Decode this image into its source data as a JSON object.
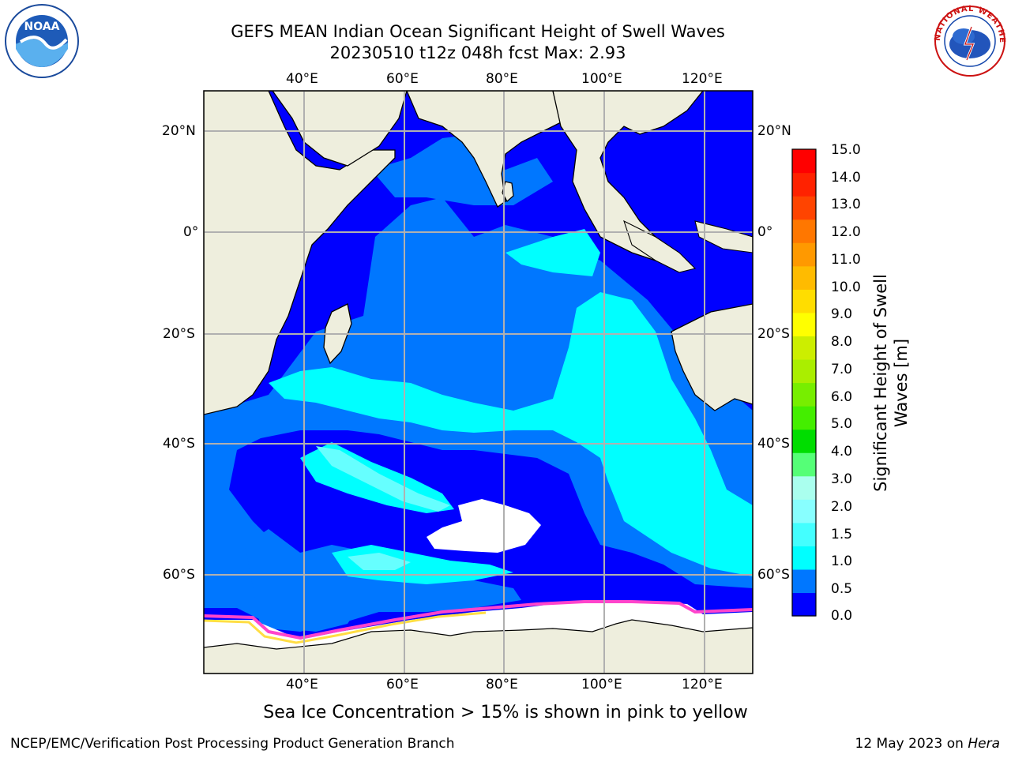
{
  "title": {
    "line1": "GEFS MEAN Indian Ocean Significant Height of Swell Waves",
    "line2": "20230510 t12z 048h fcst   Max: 2.93"
  },
  "map": {
    "lon_labels": [
      "40°E",
      "60°E",
      "80°E",
      "100°E",
      "120°E"
    ],
    "lat_labels": [
      "20°N",
      "0°",
      "20°S",
      "40°S",
      "60°S"
    ],
    "colors": {
      "land": "#eeeedd",
      "no_data": "#ffffff",
      "bin_0": "#0000ff",
      "bin_1": "#0077ff",
      "bin_2": "#00ffff",
      "bin_3": "#66ffff",
      "grid": "#b0b0b0",
      "ice_pink": "#ff44cc",
      "ice_yellow": "#ffdd44"
    }
  },
  "colorbar": {
    "title_line1": "Significant Height of Swell",
    "title_line2": "Waves [m]",
    "labels": [
      "15.0",
      "14.0",
      "13.0",
      "12.0",
      "11.0",
      "10.0",
      "9.0",
      "8.0",
      "7.0",
      "6.0",
      "5.0",
      "4.0",
      "3.0",
      "2.0",
      "1.5",
      "1.0",
      "0.5",
      "0.0"
    ],
    "colors": [
      "#0000ff",
      "#0077ff",
      "#00ffff",
      "#44ffff",
      "#88ffff",
      "#aaffee",
      "#55ff77",
      "#00dd00",
      "#44ee00",
      "#77ee00",
      "#aaee00",
      "#ccee00",
      "#ffff00",
      "#ffdd00",
      "#ffbb00",
      "#ff9900",
      "#ff7700",
      "#ff4400",
      "#ff2200",
      "#ff0000"
    ]
  },
  "footer": {
    "note": "Sea Ice Concentration > 15% is shown in pink to yellow",
    "credit": "NCEP/EMC/Verification Post Processing Product Generation Branch",
    "date": "12 May 2023 on ",
    "host": "Hera"
  },
  "logos": {
    "noaa": "NOAA",
    "nws": "NATIONAL WEATHER SERVICE"
  }
}
